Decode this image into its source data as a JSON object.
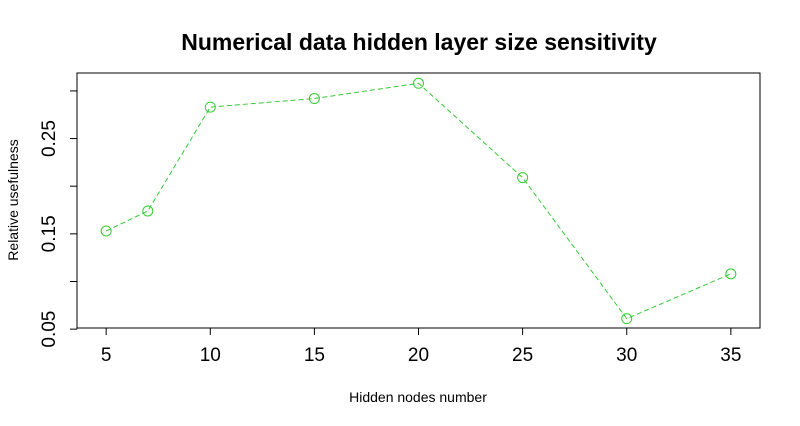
{
  "chart_data": {
    "type": "line",
    "title": "Numerical data hidden layer size sensitivity",
    "xlabel": "Hidden nodes number",
    "ylabel": "Relative usefulness",
    "x": [
      5,
      7,
      10,
      15,
      20,
      25,
      30,
      35
    ],
    "series": [
      {
        "values": [
          0.153,
          0.174,
          0.283,
          0.292,
          0.308,
          0.209,
          0.061,
          0.108
        ],
        "color": "#33cc33",
        "line_style": "dashed",
        "marker": "open-circle"
      }
    ],
    "x_ticks": [
      5,
      10,
      15,
      20,
      25,
      30,
      35
    ],
    "x_tick_labels": [
      "5",
      "10",
      "15",
      "20",
      "25",
      "30",
      "35"
    ],
    "y_ticks": [
      0.05,
      0.15,
      0.25
    ],
    "y_tick_labels": [
      "0.05",
      "0.15",
      "0.25"
    ],
    "xlim": [
      3.6,
      36.4
    ],
    "ylim": [
      0.0512,
      0.3188
    ],
    "grid": false,
    "legend": "none"
  }
}
